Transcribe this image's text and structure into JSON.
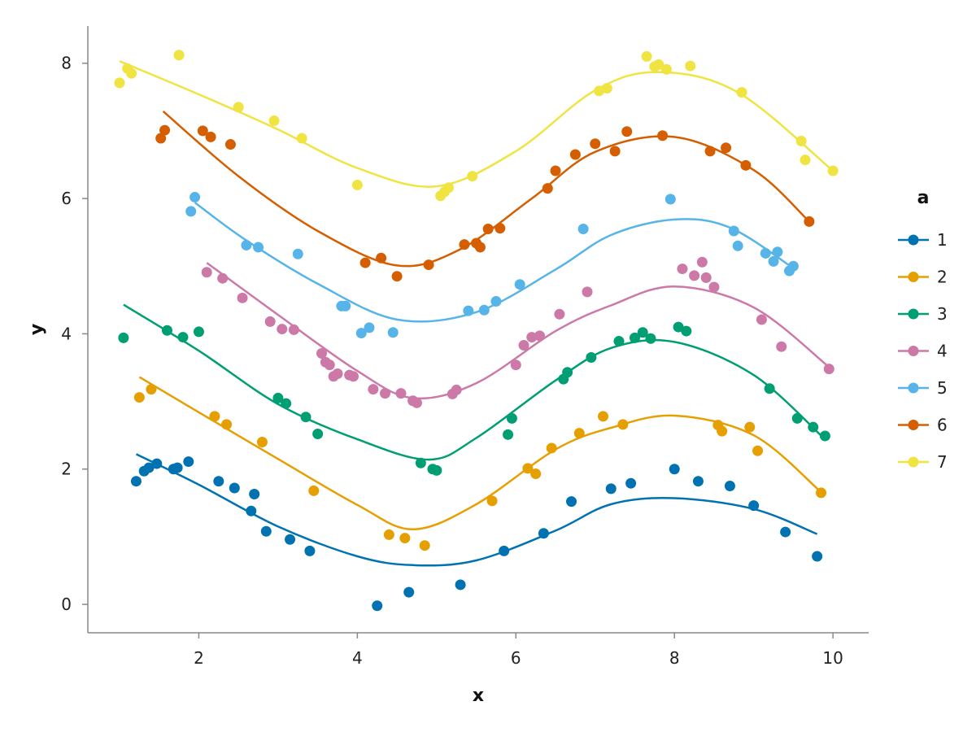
{
  "chart_data": {
    "type": "scatter",
    "xlabel": "x",
    "ylabel": "y",
    "xlim": [
      0.6,
      10.45
    ],
    "ylim": [
      -0.42,
      8.55
    ],
    "x_ticks": [
      2,
      4,
      6,
      8,
      10
    ],
    "y_ticks": [
      0,
      2,
      4,
      6,
      8
    ],
    "x_tick_labels": [
      "2",
      "4",
      "6",
      "8",
      "10"
    ],
    "y_tick_labels": [
      "0",
      "2",
      "4",
      "6",
      "8"
    ],
    "grid": false,
    "legend": {
      "title": "a",
      "placement": "right"
    },
    "series": [
      {
        "name": "1",
        "color": "#0072B2",
        "points": [
          [
            1.21,
            1.82
          ],
          [
            1.31,
            1.97
          ],
          [
            1.37,
            2.02
          ],
          [
            1.47,
            2.08
          ],
          [
            1.68,
            2.0
          ],
          [
            1.73,
            2.02
          ],
          [
            1.87,
            2.11
          ],
          [
            2.25,
            1.82
          ],
          [
            2.45,
            1.72
          ],
          [
            2.66,
            1.38
          ],
          [
            2.7,
            1.63
          ],
          [
            2.85,
            1.08
          ],
          [
            3.15,
            0.96
          ],
          [
            3.4,
            0.79
          ],
          [
            4.25,
            -0.02
          ],
          [
            4.65,
            0.18
          ],
          [
            5.3,
            0.29
          ],
          [
            5.85,
            0.79
          ],
          [
            6.35,
            1.05
          ],
          [
            6.7,
            1.52
          ],
          [
            7.2,
            1.71
          ],
          [
            7.45,
            1.79
          ],
          [
            8.0,
            2.0
          ],
          [
            8.3,
            1.82
          ],
          [
            8.7,
            1.75
          ],
          [
            9.0,
            1.46
          ],
          [
            9.4,
            1.07
          ],
          [
            9.8,
            0.71
          ]
        ],
        "fit": [
          [
            1.21,
            2.22
          ],
          [
            2.0,
            1.77
          ],
          [
            3.0,
            1.15
          ],
          [
            4.0,
            0.71
          ],
          [
            4.7,
            0.58
          ],
          [
            5.5,
            0.65
          ],
          [
            6.5,
            1.09
          ],
          [
            7.2,
            1.48
          ],
          [
            8.0,
            1.57
          ],
          [
            9.0,
            1.41
          ],
          [
            9.8,
            1.04
          ]
        ]
      },
      {
        "name": "2",
        "color": "#E69F00",
        "points": [
          [
            1.25,
            3.06
          ],
          [
            1.4,
            3.18
          ],
          [
            2.2,
            2.78
          ],
          [
            2.35,
            2.66
          ],
          [
            2.8,
            2.4
          ],
          [
            3.45,
            1.68
          ],
          [
            4.4,
            1.03
          ],
          [
            4.6,
            0.98
          ],
          [
            4.85,
            0.87
          ],
          [
            5.7,
            1.53
          ],
          [
            6.15,
            2.01
          ],
          [
            6.25,
            1.93
          ],
          [
            6.45,
            2.31
          ],
          [
            6.8,
            2.53
          ],
          [
            7.1,
            2.78
          ],
          [
            7.35,
            2.66
          ],
          [
            8.55,
            2.65
          ],
          [
            8.6,
            2.56
          ],
          [
            8.95,
            2.62
          ],
          [
            9.05,
            2.27
          ],
          [
            9.85,
            1.65
          ]
        ],
        "fit": [
          [
            1.25,
            3.36
          ],
          [
            2.0,
            2.84
          ],
          [
            3.0,
            2.15
          ],
          [
            4.0,
            1.47
          ],
          [
            4.7,
            1.11
          ],
          [
            5.5,
            1.48
          ],
          [
            6.5,
            2.29
          ],
          [
            7.2,
            2.61
          ],
          [
            8.0,
            2.79
          ],
          [
            9.0,
            2.5
          ],
          [
            9.85,
            1.66
          ]
        ]
      },
      {
        "name": "3",
        "color": "#009E73",
        "points": [
          [
            1.05,
            3.94
          ],
          [
            1.6,
            4.05
          ],
          [
            1.8,
            3.95
          ],
          [
            2.0,
            4.03
          ],
          [
            3.0,
            3.05
          ],
          [
            3.1,
            2.97
          ],
          [
            3.35,
            2.77
          ],
          [
            3.5,
            2.52
          ],
          [
            4.8,
            2.09
          ],
          [
            4.95,
            2.0
          ],
          [
            5.0,
            1.98
          ],
          [
            5.9,
            2.51
          ],
          [
            5.95,
            2.75
          ],
          [
            6.6,
            3.33
          ],
          [
            6.65,
            3.43
          ],
          [
            6.95,
            3.65
          ],
          [
            7.3,
            3.89
          ],
          [
            7.5,
            3.94
          ],
          [
            7.6,
            4.02
          ],
          [
            7.7,
            3.93
          ],
          [
            8.05,
            4.1
          ],
          [
            8.15,
            4.04
          ],
          [
            9.2,
            3.19
          ],
          [
            9.55,
            2.75
          ],
          [
            9.75,
            2.62
          ],
          [
            9.9,
            2.49
          ]
        ],
        "fit": [
          [
            1.05,
            4.43
          ],
          [
            2.0,
            3.75
          ],
          [
            3.0,
            2.96
          ],
          [
            4.0,
            2.44
          ],
          [
            4.9,
            2.14
          ],
          [
            5.5,
            2.46
          ],
          [
            6.5,
            3.31
          ],
          [
            7.2,
            3.79
          ],
          [
            8.0,
            3.88
          ],
          [
            9.0,
            3.39
          ],
          [
            9.9,
            2.44
          ]
        ]
      },
      {
        "name": "4",
        "color": "#CC79A7",
        "points": [
          [
            2.1,
            4.91
          ],
          [
            2.3,
            4.82
          ],
          [
            2.55,
            4.53
          ],
          [
            2.9,
            4.18
          ],
          [
            3.05,
            4.07
          ],
          [
            3.2,
            4.06
          ],
          [
            3.55,
            3.71
          ],
          [
            3.6,
            3.58
          ],
          [
            3.65,
            3.54
          ],
          [
            3.7,
            3.37
          ],
          [
            3.75,
            3.41
          ],
          [
            3.9,
            3.39
          ],
          [
            3.95,
            3.37
          ],
          [
            4.2,
            3.18
          ],
          [
            4.35,
            3.12
          ],
          [
            4.55,
            3.12
          ],
          [
            4.7,
            3.01
          ],
          [
            4.75,
            2.98
          ],
          [
            5.2,
            3.11
          ],
          [
            5.25,
            3.17
          ],
          [
            6.0,
            3.54
          ],
          [
            6.1,
            3.83
          ],
          [
            6.2,
            3.95
          ],
          [
            6.3,
            3.97
          ],
          [
            6.55,
            4.29
          ],
          [
            6.9,
            4.62
          ],
          [
            8.1,
            4.96
          ],
          [
            8.25,
            4.86
          ],
          [
            8.35,
            5.06
          ],
          [
            8.4,
            4.83
          ],
          [
            8.5,
            4.69
          ],
          [
            9.1,
            4.21
          ],
          [
            9.35,
            3.81
          ],
          [
            9.95,
            3.48
          ]
        ],
        "fit": [
          [
            2.1,
            5.05
          ],
          [
            3.0,
            4.28
          ],
          [
            4.0,
            3.45
          ],
          [
            4.7,
            3.05
          ],
          [
            5.5,
            3.27
          ],
          [
            6.5,
            4.04
          ],
          [
            7.2,
            4.42
          ],
          [
            8.0,
            4.7
          ],
          [
            9.0,
            4.39
          ],
          [
            9.95,
            3.51
          ]
        ]
      },
      {
        "name": "5",
        "color": "#56B4E9",
        "points": [
          [
            1.9,
            5.81
          ],
          [
            1.95,
            6.02
          ],
          [
            2.6,
            5.31
          ],
          [
            2.75,
            5.28
          ],
          [
            3.25,
            5.18
          ],
          [
            3.8,
            4.41
          ],
          [
            3.85,
            4.41
          ],
          [
            4.05,
            4.01
          ],
          [
            4.15,
            4.09
          ],
          [
            4.45,
            4.02
          ],
          [
            5.4,
            4.34
          ],
          [
            5.6,
            4.35
          ],
          [
            5.75,
            4.48
          ],
          [
            6.05,
            4.73
          ],
          [
            6.85,
            5.55
          ],
          [
            7.95,
            5.99
          ],
          [
            8.75,
            5.52
          ],
          [
            8.8,
            5.3
          ],
          [
            9.15,
            5.19
          ],
          [
            9.25,
            5.07
          ],
          [
            9.3,
            5.21
          ],
          [
            9.45,
            4.93
          ],
          [
            9.5,
            5.0
          ]
        ],
        "fit": [
          [
            1.95,
            5.94
          ],
          [
            2.6,
            5.38
          ],
          [
            3.5,
            4.74
          ],
          [
            4.5,
            4.21
          ],
          [
            5.5,
            4.32
          ],
          [
            6.5,
            4.95
          ],
          [
            7.2,
            5.46
          ],
          [
            8.0,
            5.69
          ],
          [
            8.7,
            5.57
          ],
          [
            9.5,
            4.97
          ]
        ]
      },
      {
        "name": "6",
        "color": "#D55E00",
        "points": [
          [
            1.52,
            6.89
          ],
          [
            1.57,
            7.01
          ],
          [
            2.05,
            7.0
          ],
          [
            2.15,
            6.91
          ],
          [
            2.4,
            6.8
          ],
          [
            4.1,
            5.05
          ],
          [
            4.3,
            5.12
          ],
          [
            4.5,
            4.85
          ],
          [
            4.9,
            5.02
          ],
          [
            5.35,
            5.32
          ],
          [
            5.5,
            5.34
          ],
          [
            5.55,
            5.28
          ],
          [
            5.65,
            5.55
          ],
          [
            5.8,
            5.56
          ],
          [
            6.4,
            6.15
          ],
          [
            6.5,
            6.41
          ],
          [
            6.75,
            6.65
          ],
          [
            7.0,
            6.81
          ],
          [
            7.25,
            6.7
          ],
          [
            7.4,
            6.99
          ],
          [
            7.85,
            6.93
          ],
          [
            8.45,
            6.7
          ],
          [
            8.65,
            6.75
          ],
          [
            8.9,
            6.49
          ],
          [
            9.7,
            5.66
          ]
        ],
        "fit": [
          [
            1.55,
            7.29
          ],
          [
            2.5,
            6.33
          ],
          [
            3.5,
            5.52
          ],
          [
            4.5,
            5.01
          ],
          [
            5.3,
            5.25
          ],
          [
            6.2,
            6.0
          ],
          [
            7.0,
            6.69
          ],
          [
            8.0,
            6.91
          ],
          [
            9.0,
            6.42
          ],
          [
            9.7,
            5.66
          ]
        ]
      },
      {
        "name": "7",
        "color": "#F0E442",
        "points": [
          [
            1.0,
            7.71
          ],
          [
            1.1,
            7.92
          ],
          [
            1.15,
            7.85
          ],
          [
            1.75,
            8.12
          ],
          [
            2.5,
            7.35
          ],
          [
            2.95,
            7.15
          ],
          [
            3.3,
            6.89
          ],
          [
            4.0,
            6.2
          ],
          [
            5.05,
            6.04
          ],
          [
            5.1,
            6.1
          ],
          [
            5.15,
            6.16
          ],
          [
            5.45,
            6.33
          ],
          [
            7.05,
            7.59
          ],
          [
            7.15,
            7.63
          ],
          [
            7.65,
            8.1
          ],
          [
            7.75,
            7.95
          ],
          [
            7.8,
            7.98
          ],
          [
            7.9,
            7.91
          ],
          [
            8.2,
            7.96
          ],
          [
            8.85,
            7.57
          ],
          [
            9.6,
            6.85
          ],
          [
            9.65,
            6.57
          ],
          [
            10.0,
            6.41
          ]
        ],
        "fit": [
          [
            1.0,
            8.03
          ],
          [
            2.0,
            7.54
          ],
          [
            3.0,
            7.02
          ],
          [
            4.0,
            6.45
          ],
          [
            5.0,
            6.18
          ],
          [
            6.0,
            6.7
          ],
          [
            7.0,
            7.6
          ],
          [
            7.8,
            7.87
          ],
          [
            8.8,
            7.57
          ],
          [
            10.0,
            6.41
          ]
        ]
      }
    ]
  }
}
